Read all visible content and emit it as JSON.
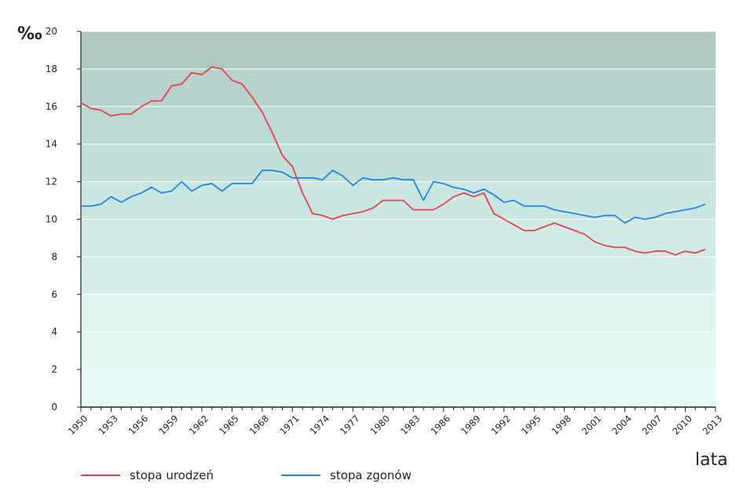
{
  "chart_data": {
    "type": "line",
    "ylabel": "‰",
    "xlabel": "lata",
    "ylim": [
      0,
      20
    ],
    "yticks": [
      0,
      2,
      4,
      6,
      8,
      10,
      12,
      14,
      16,
      18,
      20
    ],
    "xlim": [
      1950,
      2013
    ],
    "xticks": [
      1950,
      1953,
      1956,
      1959,
      1962,
      1965,
      1968,
      1971,
      1974,
      1977,
      1980,
      1983,
      1986,
      1989,
      1992,
      1995,
      1998,
      2001,
      2004,
      2007,
      2010,
      2013
    ],
    "x": [
      1950,
      1951,
      1952,
      1953,
      1954,
      1955,
      1956,
      1957,
      1958,
      1959,
      1960,
      1961,
      1962,
      1963,
      1964,
      1965,
      1966,
      1967,
      1968,
      1969,
      1970,
      1971,
      1972,
      1973,
      1974,
      1975,
      1976,
      1977,
      1978,
      1979,
      1980,
      1981,
      1982,
      1983,
      1984,
      1985,
      1986,
      1987,
      1988,
      1989,
      1990,
      1991,
      1992,
      1993,
      1994,
      1995,
      1996,
      1997,
      1998,
      1999,
      2000,
      2001,
      2002,
      2003,
      2004,
      2005,
      2006,
      2007,
      2008,
      2009,
      2010,
      2011,
      2012
    ],
    "series": [
      {
        "name": "stopa urodzeń",
        "color": "#e8414b",
        "values": [
          16.2,
          15.9,
          15.8,
          15.5,
          15.6,
          15.6,
          16.0,
          16.3,
          16.3,
          17.1,
          17.2,
          17.8,
          17.7,
          18.1,
          18.0,
          17.4,
          17.2,
          16.5,
          15.7,
          14.6,
          13.4,
          12.8,
          11.4,
          10.3,
          10.2,
          10.0,
          10.2,
          10.3,
          10.4,
          10.6,
          11.0,
          11.0,
          11.0,
          10.5,
          10.5,
          10.5,
          10.8,
          11.2,
          11.4,
          11.2,
          11.4,
          10.3,
          10.0,
          9.7,
          9.4,
          9.4,
          9.6,
          9.8,
          9.6,
          9.4,
          9.2,
          8.8,
          8.6,
          8.5,
          8.5,
          8.3,
          8.2,
          8.3,
          8.3,
          8.1,
          8.3,
          8.2,
          8.4
        ]
      },
      {
        "name": "stopa zgonów",
        "color": "#1f86e5",
        "values": [
          10.7,
          10.7,
          10.8,
          11.2,
          10.9,
          11.2,
          11.4,
          11.7,
          11.4,
          11.5,
          12.0,
          11.5,
          11.8,
          11.9,
          11.5,
          11.9,
          11.9,
          11.9,
          12.6,
          12.6,
          12.5,
          12.2,
          12.2,
          12.2,
          12.1,
          12.6,
          12.3,
          11.8,
          12.2,
          12.1,
          12.1,
          12.2,
          12.1,
          12.1,
          11.0,
          12.0,
          11.9,
          11.7,
          11.6,
          11.4,
          11.6,
          11.3,
          10.9,
          11.0,
          10.7,
          10.7,
          10.7,
          10.5,
          10.4,
          10.3,
          10.2,
          10.1,
          10.2,
          10.2,
          9.8,
          10.1,
          10.0,
          10.1,
          10.3,
          10.4,
          10.5,
          10.6,
          10.8
        ]
      }
    ],
    "bands": [
      "#e6fbf7",
      "#e1f7f2",
      "#dcf3ee",
      "#d6efea",
      "#d0ebe6",
      "#c9e6e1",
      "#c1e0da",
      "#bbdad4",
      "#b5d3cc",
      "#acc8bf"
    ]
  }
}
